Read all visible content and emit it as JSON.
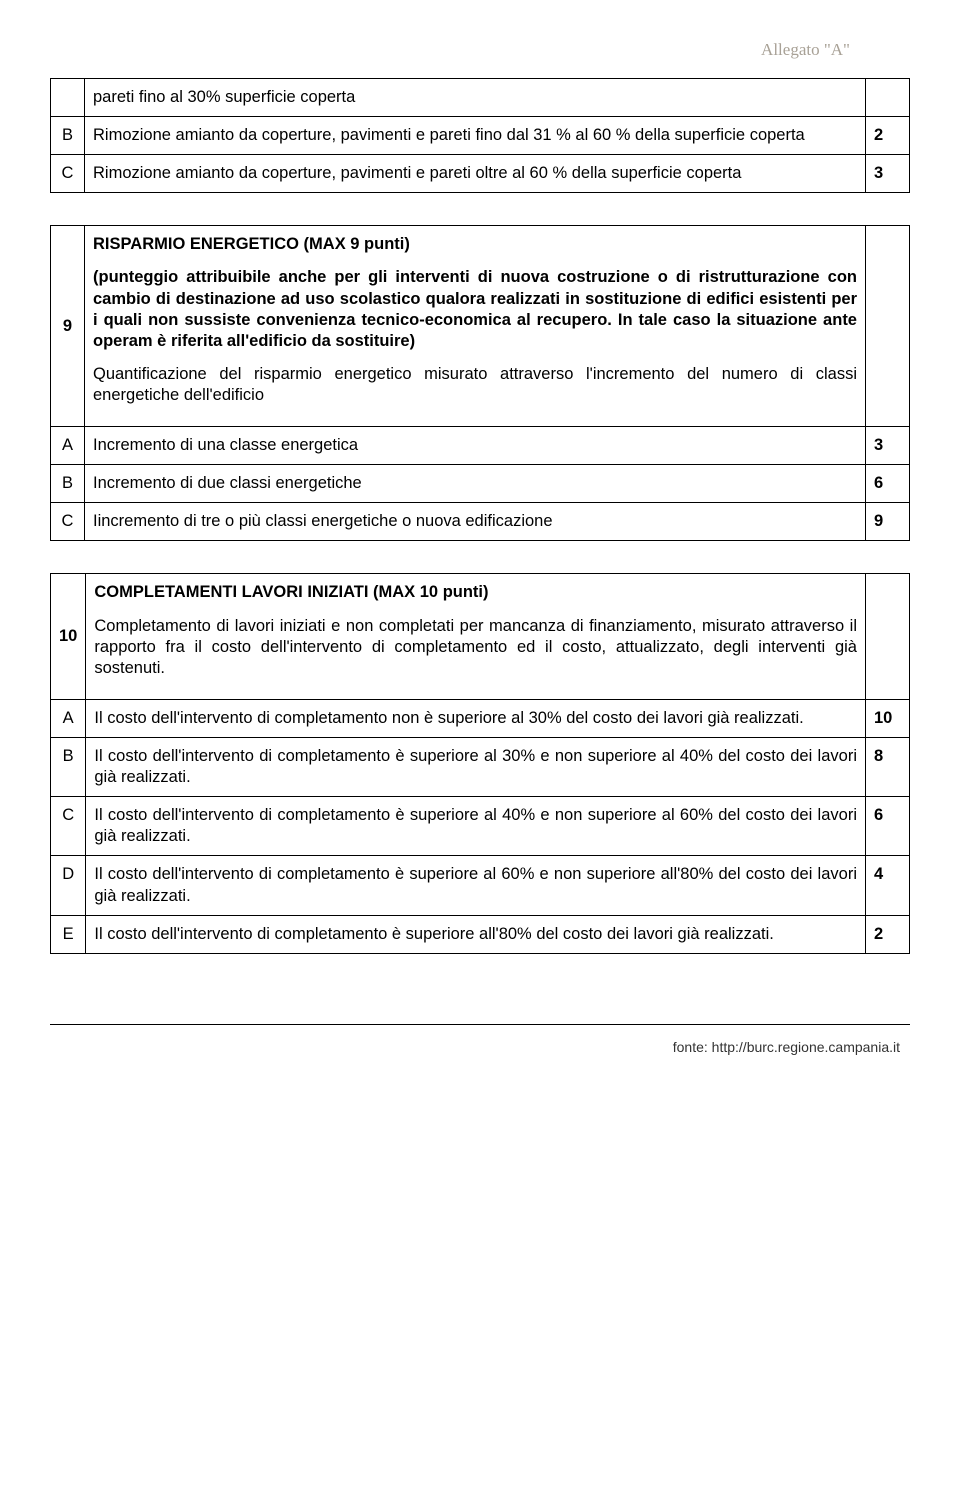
{
  "header": "Allegato \"A\"",
  "table1": {
    "row0": {
      "text": "pareti fino al 30% superficie coperta"
    },
    "rowB": {
      "label": "B",
      "text": "Rimozione amianto da coperture, pavimenti e pareti fino dal 31 % al 60 % della superficie coperta",
      "score": "2"
    },
    "rowC": {
      "label": "C",
      "text": "Rimozione amianto da coperture, pavimenti e pareti oltre al 60 % della superficie coperta",
      "score": "3"
    }
  },
  "table2": {
    "row9": {
      "label": "9",
      "title": "RISPARMIO ENERGETICO (MAX 9  punti)",
      "boldpara": "(punteggio attribuibile anche per gli interventi di nuova costruzione o di ristrutturazione con cambio di destinazione ad uso scolastico qualora realizzati in sostituzione di edifici esistenti per i quali non sussiste convenienza tecnico-economica al recupero. In tale caso la situazione ante operam è riferita all'edificio da sostituire)",
      "para": "Quantificazione del risparmio energetico misurato attraverso l'incremento del numero di classi energetiche dell'edificio"
    },
    "rowA": {
      "label": "A",
      "text": "Incremento di una classe energetica",
      "score": "3"
    },
    "rowB": {
      "label": "B",
      "text": "Incremento di due classi energetiche",
      "score": "6"
    },
    "rowC": {
      "label": "C",
      "text": "Iincremento di tre o più classi energetiche o nuova edificazione",
      "score": "9"
    }
  },
  "table3": {
    "row10": {
      "label": "10",
      "title": "COMPLETAMENTI LAVORI INIZIATI (MAX 10 punti)",
      "para": "Completamento di lavori iniziati e non completati per mancanza di finanziamento, misurato attraverso il rapporto fra il costo dell'intervento di completamento ed il costo, attualizzato, degli interventi già sostenuti."
    },
    "rowA": {
      "label": "A",
      "text": "Il costo dell'intervento di completamento non è superiore al 30% del costo dei lavori già realizzati.",
      "score": "10"
    },
    "rowB": {
      "label": "B",
      "text": "Il costo dell'intervento di completamento è superiore al 30%  e non superiore al   40% del costo dei lavori già realizzati.",
      "score": "8"
    },
    "rowC": {
      "label": "C",
      "text": "Il costo dell'intervento di completamento è superiore al 40% e non superiore  al  60% del  costo dei lavori già realizzati.",
      "score": "6"
    },
    "rowD": {
      "label": "D",
      "text": "Il costo dell'intervento di completamento è  superiore al 60% e non superiore  all'80% del costo dei lavori già realizzati.",
      "score": "4"
    },
    "rowE": {
      "label": "E",
      "text": "Il costo dell'intervento di completamento è superiore all'80% del costo dei lavori già realizzati.",
      "score": "2"
    }
  },
  "footer": "fonte: http://burc.regione.campania.it"
}
